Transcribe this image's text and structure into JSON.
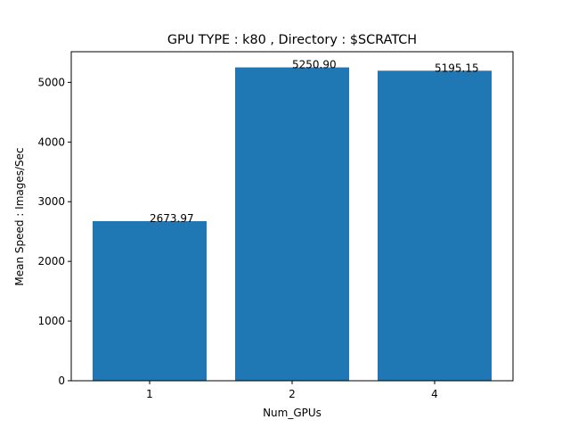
{
  "chart_data": {
    "type": "bar",
    "title": "GPU TYPE : k80 , Directory : $SCRATCH",
    "xlabel": "Num_GPUs",
    "ylabel": "Mean Speed : Images/Sec",
    "categories": [
      "1",
      "2",
      "4"
    ],
    "values": [
      2673.97,
      5250.9,
      5195.15
    ],
    "value_labels": [
      "2673.97",
      "5250.90",
      "5195.15"
    ],
    "ylim": [
      0,
      5513.4
    ],
    "yticks": [
      0,
      1000,
      2000,
      3000,
      4000,
      5000
    ],
    "bar_color": "#1f77b4",
    "grid": false,
    "legend": "none"
  }
}
